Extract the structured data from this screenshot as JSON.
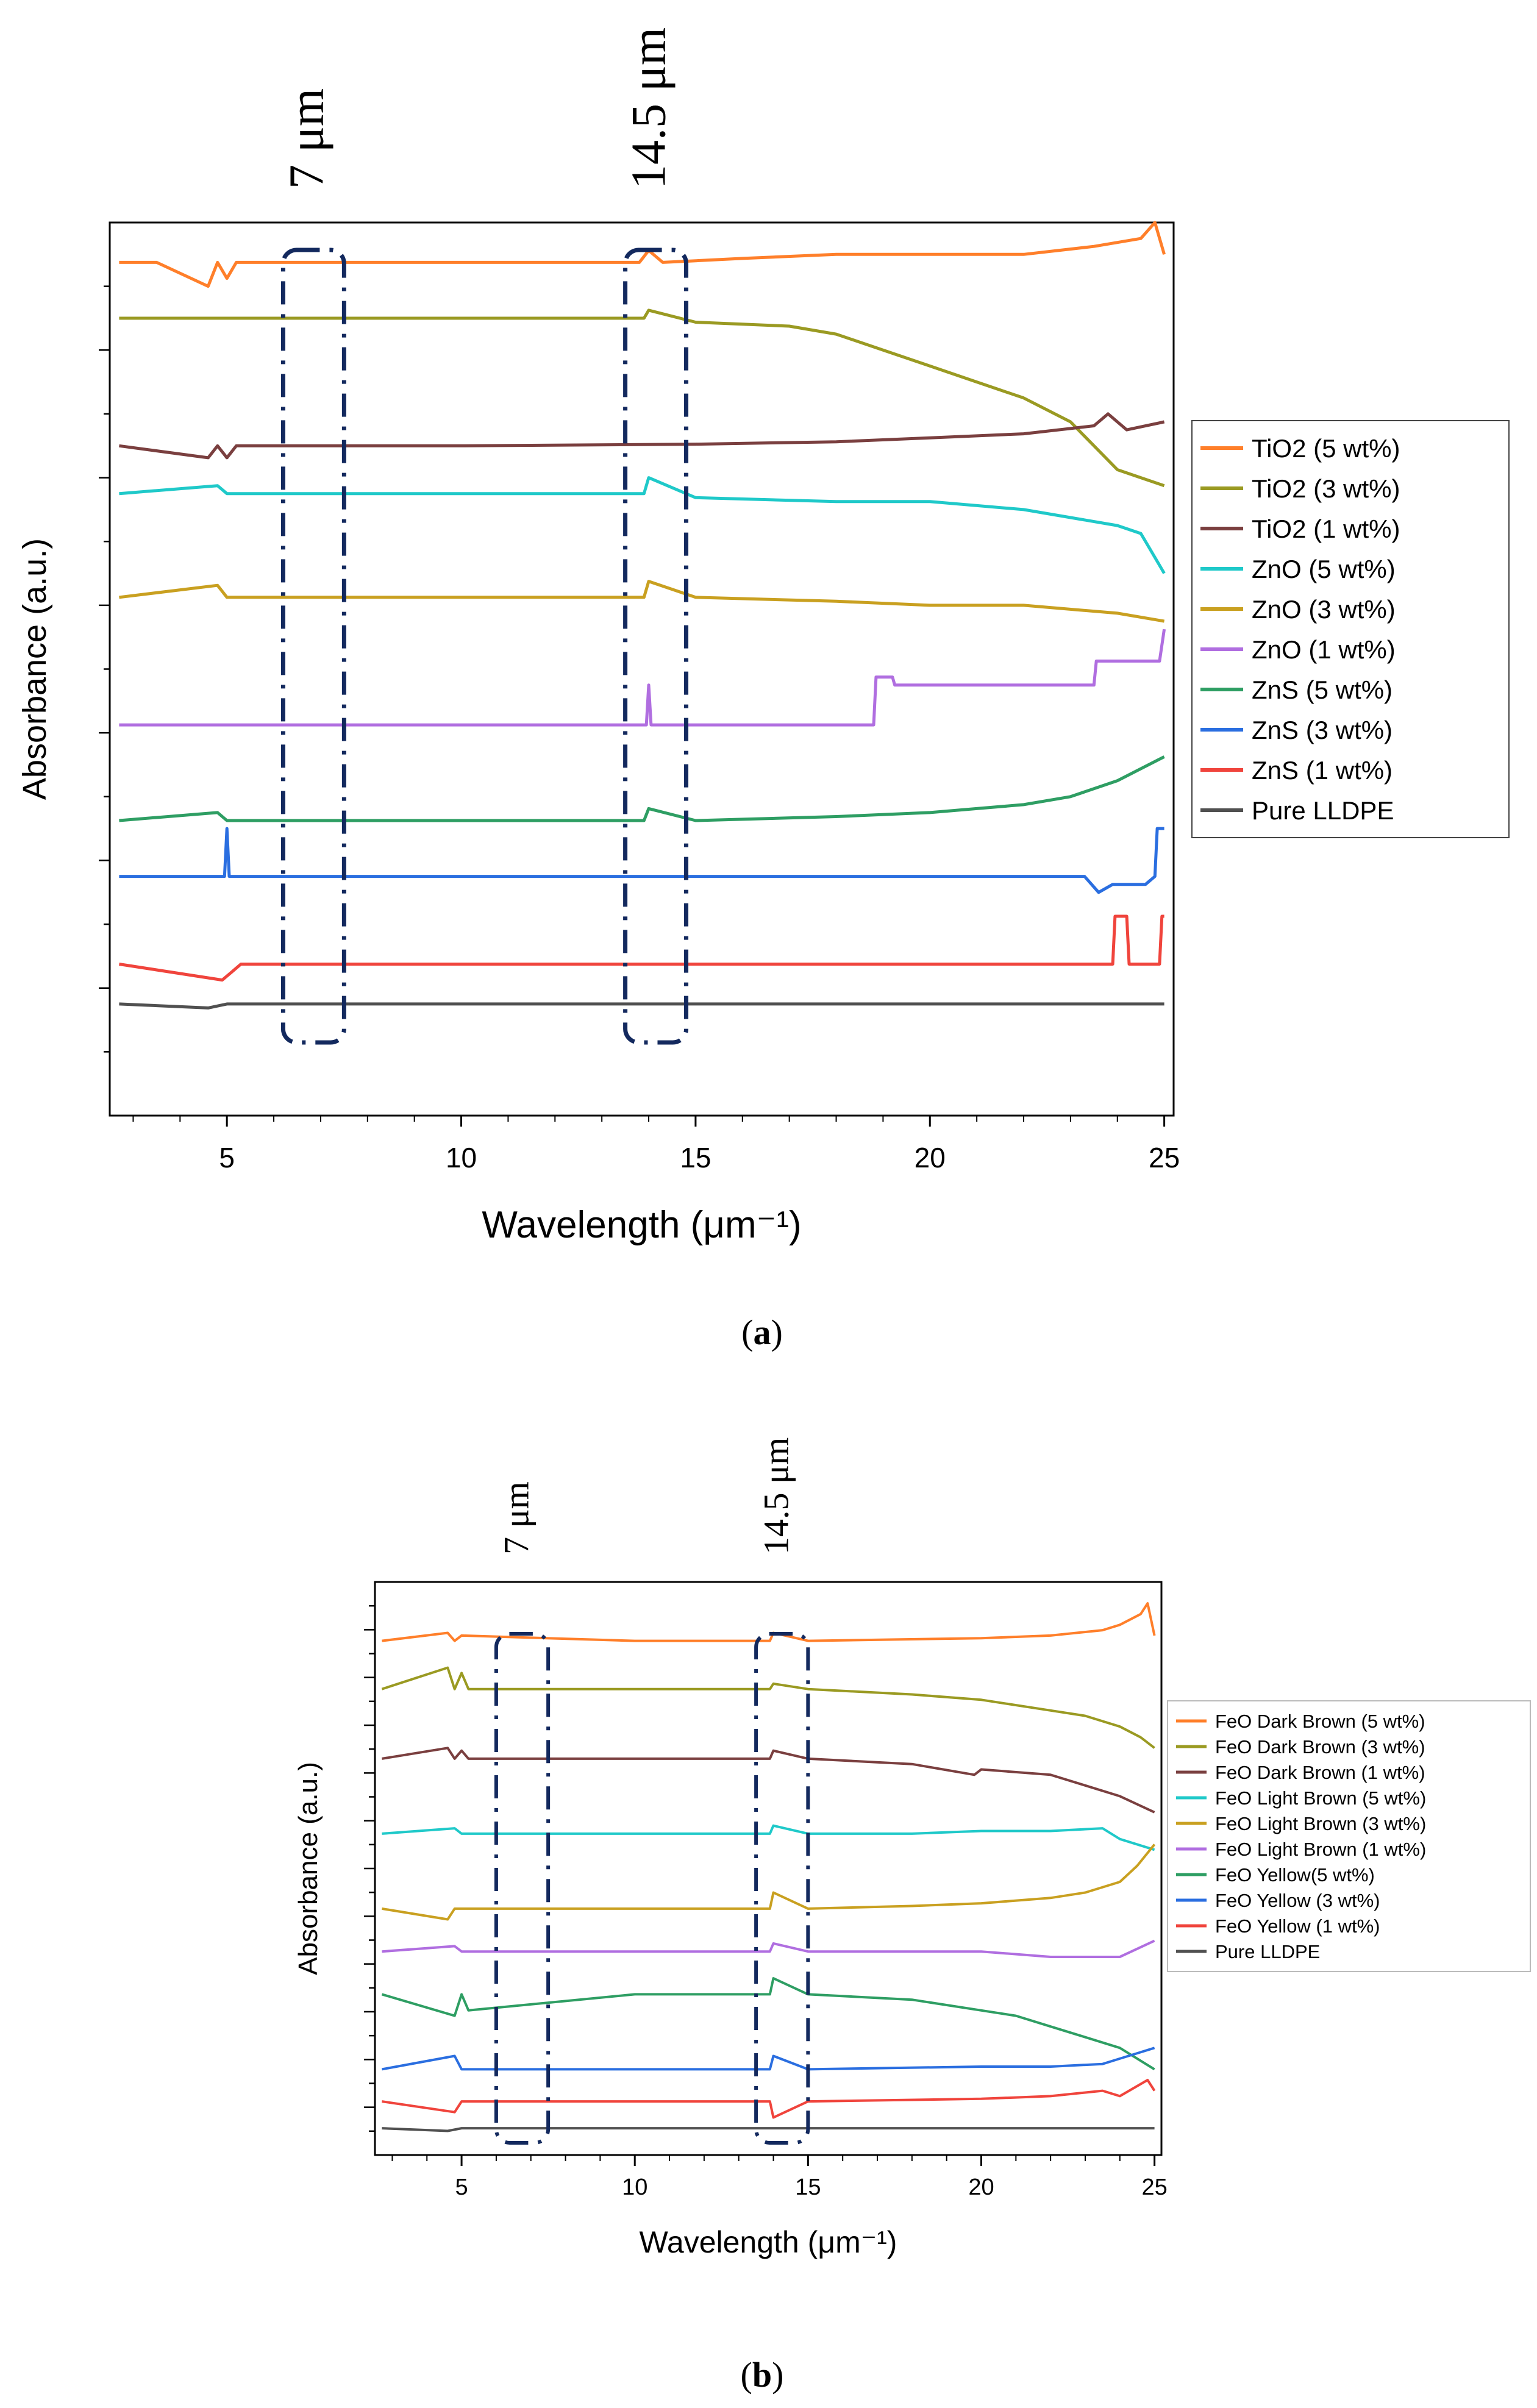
{
  "figure": {
    "panels": [
      {
        "caption_open": "(",
        "caption_letter": "a",
        "caption_close": ")"
      },
      {
        "caption_open": "(",
        "caption_letter": "b",
        "caption_close": ")"
      }
    ]
  },
  "chart_data": [
    {
      "type": "line",
      "panel": "a",
      "xlabel": "Wavelength (μm⁻¹)",
      "ylabel": "Absorbance (a.u.)",
      "xlim": [
        2.5,
        25.2
      ],
      "xticks": [
        "5",
        "10",
        "15",
        "20",
        "25"
      ],
      "y_tick_labels": "none",
      "grid": false,
      "legend_position": "right",
      "annotations": [
        {
          "text": "7 μm",
          "x_range": [
            6.2,
            7.5
          ],
          "x": 7
        },
        {
          "text": "14.5 μm",
          "x_range": [
            13.5,
            14.8
          ],
          "x": 14.5
        }
      ],
      "series": [
        {
          "name": "TiO2 (5 wt%)",
          "color": "#ff7f2a",
          "offset": 9.3,
          "x": [
            2.7,
            3.5,
            4.6,
            4.8,
            5.0,
            5.2,
            6.0,
            10,
            13.8,
            14.0,
            14.3,
            16,
            18,
            20,
            22,
            23.5,
            24.0,
            24.5,
            24.8,
            25.0
          ],
          "y": [
            0,
            0,
            -0.3,
            0,
            -0.2,
            0,
            0,
            0,
            0,
            0.15,
            0,
            0.05,
            0.1,
            0.1,
            0.1,
            0.2,
            0.25,
            0.3,
            0.5,
            0.1
          ]
        },
        {
          "name": "TiO2 (3 wt%)",
          "color": "#9a9a22",
          "offset": 8.6,
          "x": [
            2.7,
            5,
            10,
            13.9,
            14.0,
            15,
            17,
            18,
            19,
            20,
            21,
            22,
            23,
            23.5,
            24.0,
            24.5,
            25.0
          ],
          "y": [
            0,
            0,
            0,
            0,
            0.1,
            -0.05,
            -0.1,
            -0.2,
            -0.4,
            -0.6,
            -0.8,
            -1.0,
            -1.3,
            -1.6,
            -1.9,
            -2.0,
            -2.1
          ]
        },
        {
          "name": "TiO2 (1 wt%)",
          "color": "#7a3f3f",
          "offset": 7.0,
          "x": [
            2.7,
            4.6,
            4.8,
            5.0,
            5.2,
            6,
            10,
            15,
            18,
            20,
            22,
            23.5,
            23.8,
            24.2,
            25.0
          ],
          "y": [
            0,
            -0.15,
            0,
            -0.15,
            0,
            0,
            0,
            0.02,
            0.05,
            0.1,
            0.15,
            0.25,
            0.4,
            0.2,
            0.3
          ]
        },
        {
          "name": "ZnO (5 wt%)",
          "color": "#1fc9c9",
          "offset": 6.4,
          "x": [
            2.7,
            4.8,
            5.0,
            10,
            13.9,
            14.0,
            15,
            18,
            20,
            22,
            23,
            24,
            24.5,
            24.8,
            25.0
          ],
          "y": [
            0,
            0.1,
            0,
            0,
            0,
            0.2,
            -0.05,
            -0.1,
            -0.1,
            -0.2,
            -0.3,
            -0.4,
            -0.5,
            -0.8,
            -1.0
          ]
        },
        {
          "name": "ZnO (3 wt%)",
          "color": "#c9a020",
          "offset": 5.1,
          "x": [
            2.7,
            4.8,
            5.0,
            10,
            13.9,
            14.0,
            15,
            18,
            20,
            22,
            24,
            25.0
          ],
          "y": [
            0,
            0.15,
            0,
            0,
            0,
            0.2,
            0,
            -0.05,
            -0.1,
            -0.1,
            -0.2,
            -0.3
          ]
        },
        {
          "name": "ZnO (1 wt%)",
          "color": "#b06ee0",
          "offset": 3.5,
          "x": [
            2.7,
            13.95,
            14.0,
            14.05,
            18.8,
            18.85,
            19.2,
            19.25,
            20.2,
            20.25,
            23.5,
            23.55,
            24.9,
            25.0
          ],
          "y": [
            0,
            0,
            0.5,
            0,
            0,
            0.6,
            0.6,
            0.5,
            0.5,
            0.5,
            0.5,
            0.8,
            0.8,
            1.2
          ]
        },
        {
          "name": "ZnS (5 wt%)",
          "color": "#2e9e63",
          "offset": 2.3,
          "x": [
            2.7,
            4.8,
            5.0,
            10,
            13.9,
            14.0,
            15,
            18,
            20,
            21,
            22,
            23,
            24,
            25.0
          ],
          "y": [
            0,
            0.1,
            0,
            0,
            0,
            0.15,
            0,
            0.05,
            0.1,
            0.15,
            0.2,
            0.3,
            0.5,
            0.8
          ]
        },
        {
          "name": "ZnS (3 wt%)",
          "color": "#2a6ee0",
          "offset": 1.6,
          "x": [
            2.7,
            4.95,
            5.0,
            5.05,
            23.3,
            23.6,
            23.9,
            24.2,
            24.6,
            24.8,
            24.85,
            25.0
          ],
          "y": [
            0,
            0,
            0.6,
            0,
            0,
            -0.2,
            -0.1,
            -0.1,
            -0.1,
            0,
            0.6,
            0.6
          ]
        },
        {
          "name": "ZnS (1 wt%)",
          "color": "#f0443c",
          "offset": 0.5,
          "x": [
            2.7,
            4.9,
            5.1,
            5.3,
            23.9,
            23.95,
            24.2,
            24.25,
            24.9,
            24.95,
            25.0
          ],
          "y": [
            0,
            -0.2,
            -0.1,
            0,
            0,
            0.6,
            0.6,
            0,
            0,
            0.6,
            0.6
          ]
        },
        {
          "name": "Pure LLDPE",
          "color": "#505050",
          "offset": 0.0,
          "x": [
            2.7,
            4.6,
            5.0,
            10,
            20,
            25.0
          ],
          "y": [
            0,
            -0.05,
            0,
            0,
            0,
            0
          ]
        }
      ]
    },
    {
      "type": "line",
      "panel": "b",
      "xlabel": "Wavelength (μm⁻¹)",
      "ylabel": "Absorbance (a.u.)",
      "xlim": [
        2.5,
        25.2
      ],
      "xticks": [
        "5",
        "10",
        "15",
        "20",
        "25"
      ],
      "y_tick_labels": "none",
      "grid": false,
      "legend_position": "right",
      "annotations": [
        {
          "text": "7 μm",
          "x_range": [
            6.0,
            7.5
          ],
          "x": 7
        },
        {
          "text": "14.5 μm",
          "x_range": [
            13.5,
            15.0
          ],
          "x": 14.5
        }
      ],
      "series": [
        {
          "name": "FeO Dark Brown (5 wt%)",
          "color": "#ff7f2a",
          "offset": 9.1,
          "x": [
            2.7,
            4.6,
            4.8,
            5.0,
            10,
            13.9,
            14.0,
            15,
            20,
            22,
            23.5,
            24.0,
            24.6,
            24.8,
            25.0
          ],
          "y": [
            0,
            0.15,
            0,
            0.1,
            0,
            0,
            0.15,
            0,
            0.05,
            0.1,
            0.2,
            0.3,
            0.5,
            0.7,
            0.1
          ]
        },
        {
          "name": "FeO Dark Brown (3 wt%)",
          "color": "#9a9a22",
          "offset": 8.2,
          "x": [
            2.7,
            4.6,
            4.8,
            5.0,
            5.2,
            10,
            13.9,
            14.0,
            15,
            18,
            20,
            22,
            23,
            24,
            24.6,
            25.0
          ],
          "y": [
            0,
            0.4,
            0,
            0.3,
            0,
            0,
            0,
            0.1,
            0,
            -0.1,
            -0.2,
            -0.4,
            -0.5,
            -0.7,
            -0.9,
            -1.1
          ]
        },
        {
          "name": "FeO Dark Brown (1 wt%)",
          "color": "#7a3f3f",
          "offset": 6.9,
          "x": [
            2.7,
            4.6,
            4.8,
            5.0,
            5.2,
            10,
            13.9,
            14.0,
            15,
            18,
            19.8,
            20,
            22,
            23,
            24,
            25.0
          ],
          "y": [
            0,
            0.2,
            0,
            0.15,
            0,
            0,
            0,
            0.15,
            0,
            -0.1,
            -0.3,
            -0.2,
            -0.3,
            -0.5,
            -0.7,
            -1.0
          ]
        },
        {
          "name": "FeO Light Brown (5 wt%)",
          "color": "#1fc9c9",
          "offset": 5.5,
          "x": [
            2.7,
            4.8,
            5.0,
            10,
            13.9,
            14.0,
            15,
            18,
            20,
            22,
            23.5,
            24,
            25.0
          ],
          "y": [
            0,
            0.1,
            0,
            0,
            0,
            0.15,
            0,
            0,
            0.05,
            0.05,
            0.1,
            -0.1,
            -0.3
          ]
        },
        {
          "name": "FeO Light Brown (3 wt%)",
          "color": "#c9a020",
          "offset": 4.1,
          "x": [
            2.7,
            4.6,
            4.8,
            10,
            13.9,
            14.0,
            15,
            18,
            20,
            22,
            23,
            24,
            24.5,
            25.0
          ],
          "y": [
            0,
            -0.2,
            0,
            0,
            0,
            0.3,
            0,
            0.05,
            0.1,
            0.2,
            0.3,
            0.5,
            0.8,
            1.2
          ]
        },
        {
          "name": "FeO Light Brown (1 wt%)",
          "color": "#b06ee0",
          "offset": 3.3,
          "x": [
            2.7,
            4.8,
            5.0,
            10,
            13.9,
            14.0,
            15,
            18,
            20,
            22,
            24,
            25.0
          ],
          "y": [
            0,
            0.1,
            0,
            0,
            0,
            0.15,
            0,
            0,
            0,
            -0.1,
            -0.1,
            0.2
          ]
        },
        {
          "name": "FeO Yellow(5 wt%)",
          "color": "#2e9e63",
          "offset": 2.5,
          "x": [
            2.7,
            4.8,
            5.0,
            5.2,
            10,
            13.9,
            14.0,
            15,
            18,
            20,
            21,
            22,
            23,
            24,
            25.0
          ],
          "y": [
            0,
            -0.4,
            0,
            -0.3,
            0,
            0,
            0.3,
            0,
            -0.1,
            -0.3,
            -0.4,
            -0.6,
            -0.8,
            -1.0,
            -1.4
          ]
        },
        {
          "name": "FeO Yellow (3 wt%)",
          "color": "#2a6ee0",
          "offset": 1.1,
          "x": [
            2.7,
            4.8,
            5.0,
            10,
            13.9,
            14.0,
            15,
            20,
            22,
            23.5,
            24,
            24.5,
            25.0
          ],
          "y": [
            0,
            0.25,
            0,
            0,
            0,
            0.25,
            0,
            0.05,
            0.05,
            0.1,
            0.2,
            0.3,
            0.4
          ]
        },
        {
          "name": "FeO Yellow (1 wt%)",
          "color": "#f0443c",
          "offset": 0.5,
          "x": [
            2.7,
            4.8,
            5.0,
            10,
            13.9,
            14.0,
            15,
            20,
            22,
            23.5,
            24,
            24.8,
            25.0
          ],
          "y": [
            0,
            -0.2,
            0,
            0,
            0,
            -0.3,
            0,
            0.05,
            0.1,
            0.2,
            0.1,
            0.4,
            0.2
          ]
        },
        {
          "name": "Pure LLDPE",
          "color": "#505050",
          "offset": 0.0,
          "x": [
            2.7,
            4.6,
            5.0,
            10,
            20,
            25.0
          ],
          "y": [
            0,
            -0.05,
            0,
            0,
            0,
            0
          ]
        }
      ]
    }
  ]
}
